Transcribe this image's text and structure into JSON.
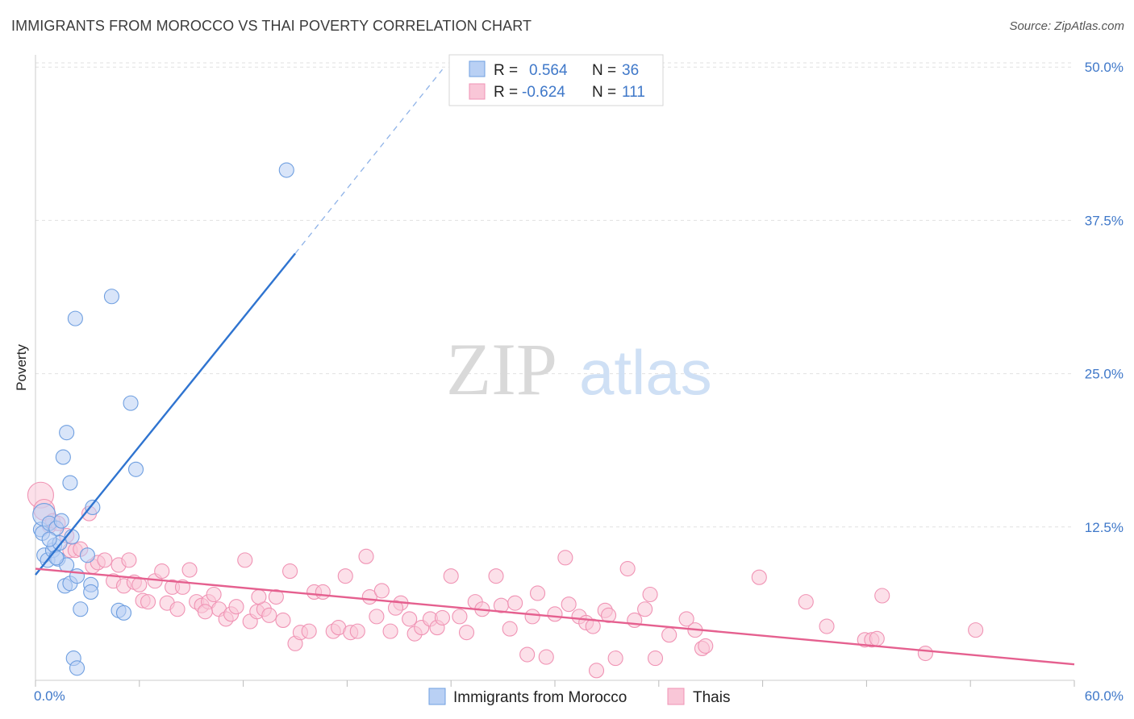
{
  "header": {
    "title": "IMMIGRANTS FROM MOROCCO VS THAI POVERTY CORRELATION CHART",
    "source": "Source: ZipAtlas.com"
  },
  "watermark": {
    "zip": "ZIP",
    "atlas": "atlas"
  },
  "legend_top": {
    "rows": [
      {
        "r_label": "R =",
        "r_value": "0.564",
        "n_label": "N =",
        "n_value": "36",
        "color": "#6f9fe0"
      },
      {
        "r_label": "R =",
        "r_value": "-0.624",
        "n_label": "N =",
        "n_value": "111",
        "color": "#f093b4"
      }
    ]
  },
  "chart_data": {
    "type": "scatter",
    "ylabel": "Poverty",
    "xlim": [
      0,
      60
    ],
    "ylim": [
      0,
      51
    ],
    "x_tick_labels": [
      "0.0%",
      "60.0%"
    ],
    "y_ticks": [
      12.5,
      25.0,
      37.5,
      50.0
    ],
    "y_tick_labels": [
      "12.5%",
      "25.0%",
      "37.5%",
      "50.0%"
    ],
    "grid": true,
    "legend_placement": "bottom-center",
    "series": [
      {
        "name": "Immigrants from Morocco",
        "color": "#6f9fe0",
        "fill": "#b9d0f4",
        "trend": {
          "x0": 0.0,
          "y0": 8.6,
          "x1": 15.0,
          "y1": 34.8,
          "dash_to_x": 23.5,
          "dash_to_y": 49.8
        },
        "points": [
          [
            0.3,
            12.3
          ],
          [
            0.4,
            12.0
          ],
          [
            0.5,
            13.5
          ],
          [
            0.5,
            10.2
          ],
          [
            0.7,
            9.8
          ],
          [
            0.8,
            12.8
          ],
          [
            1.0,
            10.6
          ],
          [
            1.1,
            11.0
          ],
          [
            1.2,
            12.4
          ],
          [
            1.3,
            9.9
          ],
          [
            1.4,
            11.2
          ],
          [
            1.5,
            13.0
          ],
          [
            1.6,
            18.2
          ],
          [
            1.7,
            7.7
          ],
          [
            1.8,
            20.2
          ],
          [
            1.8,
            9.4
          ],
          [
            2.0,
            7.9
          ],
          [
            2.0,
            16.1
          ],
          [
            2.1,
            11.7
          ],
          [
            2.2,
            1.8
          ],
          [
            2.3,
            29.5
          ],
          [
            2.4,
            1.0
          ],
          [
            2.4,
            8.5
          ],
          [
            2.6,
            5.8
          ],
          [
            3.0,
            10.2
          ],
          [
            3.2,
            7.8
          ],
          [
            3.3,
            14.1
          ],
          [
            3.2,
            7.2
          ],
          [
            4.4,
            31.3
          ],
          [
            4.8,
            5.7
          ],
          [
            5.1,
            5.5
          ],
          [
            5.5,
            22.6
          ],
          [
            5.8,
            17.2
          ],
          [
            14.5,
            41.6
          ],
          [
            1.2,
            10.0
          ],
          [
            0.8,
            11.5
          ]
        ],
        "sizes": [
          9,
          9,
          14,
          9,
          9,
          9,
          9,
          9,
          9,
          9,
          9,
          9,
          9,
          9,
          9,
          9,
          9,
          9,
          9,
          9,
          9,
          9,
          9,
          9,
          9,
          9,
          9,
          9,
          9,
          9,
          9,
          9,
          9,
          9,
          9,
          9
        ]
      },
      {
        "name": "Thais",
        "color": "#f093b4",
        "fill": "#f9c6d7",
        "trend": {
          "x0": 0.0,
          "y0": 9.1,
          "x1": 60.0,
          "y1": 1.3
        },
        "points": [
          [
            0.3,
            15.1
          ],
          [
            0.5,
            13.9
          ],
          [
            0.8,
            12.6
          ],
          [
            1.0,
            13.0
          ],
          [
            1.3,
            12.8
          ],
          [
            1.8,
            11.8
          ],
          [
            2.0,
            10.6
          ],
          [
            2.3,
            10.6
          ],
          [
            2.6,
            10.7
          ],
          [
            3.1,
            13.6
          ],
          [
            3.3,
            9.3
          ],
          [
            3.6,
            9.6
          ],
          [
            4.0,
            9.8
          ],
          [
            4.5,
            8.1
          ],
          [
            4.8,
            9.4
          ],
          [
            5.1,
            7.7
          ],
          [
            5.4,
            9.8
          ],
          [
            5.7,
            8.0
          ],
          [
            6.0,
            7.8
          ],
          [
            6.2,
            6.5
          ],
          [
            6.5,
            6.4
          ],
          [
            6.9,
            8.1
          ],
          [
            7.3,
            8.9
          ],
          [
            7.6,
            6.3
          ],
          [
            7.9,
            7.6
          ],
          [
            8.2,
            5.8
          ],
          [
            8.5,
            7.6
          ],
          [
            8.9,
            9.0
          ],
          [
            9.3,
            6.4
          ],
          [
            9.6,
            6.1
          ],
          [
            10.0,
            6.4
          ],
          [
            10.3,
            7.0
          ],
          [
            10.6,
            5.8
          ],
          [
            11.0,
            5.0
          ],
          [
            11.3,
            5.4
          ],
          [
            11.6,
            6.0
          ],
          [
            12.1,
            9.8
          ],
          [
            12.4,
            4.8
          ],
          [
            12.8,
            5.6
          ],
          [
            13.2,
            5.8
          ],
          [
            13.5,
            5.3
          ],
          [
            13.9,
            6.8
          ],
          [
            14.3,
            4.9
          ],
          [
            14.7,
            8.9
          ],
          [
            15.0,
            3.0
          ],
          [
            15.3,
            3.9
          ],
          [
            15.8,
            4.0
          ],
          [
            16.1,
            7.2
          ],
          [
            16.6,
            7.2
          ],
          [
            17.2,
            4.0
          ],
          [
            17.5,
            4.3
          ],
          [
            17.9,
            8.5
          ],
          [
            18.2,
            3.9
          ],
          [
            18.6,
            4.0
          ],
          [
            19.1,
            10.1
          ],
          [
            19.3,
            6.8
          ],
          [
            19.7,
            5.2
          ],
          [
            20.0,
            7.3
          ],
          [
            20.5,
            4.0
          ],
          [
            21.1,
            6.3
          ],
          [
            21.6,
            5.0
          ],
          [
            21.9,
            3.8
          ],
          [
            22.3,
            4.3
          ],
          [
            22.8,
            5.0
          ],
          [
            23.2,
            4.3
          ],
          [
            23.5,
            5.1
          ],
          [
            24.0,
            8.5
          ],
          [
            24.5,
            5.2
          ],
          [
            24.9,
            3.9
          ],
          [
            25.4,
            6.4
          ],
          [
            25.8,
            5.8
          ],
          [
            26.6,
            8.5
          ],
          [
            26.9,
            6.1
          ],
          [
            27.4,
            4.2
          ],
          [
            27.7,
            6.3
          ],
          [
            28.4,
            2.1
          ],
          [
            28.7,
            5.2
          ],
          [
            29.0,
            7.1
          ],
          [
            29.5,
            1.9
          ],
          [
            30.0,
            5.4
          ],
          [
            30.6,
            10.0
          ],
          [
            30.8,
            6.2
          ],
          [
            31.4,
            5.2
          ],
          [
            31.8,
            4.7
          ],
          [
            32.2,
            4.4
          ],
          [
            32.4,
            0.8
          ],
          [
            32.9,
            5.7
          ],
          [
            33.1,
            5.3
          ],
          [
            33.5,
            1.8
          ],
          [
            34.2,
            9.1
          ],
          [
            34.6,
            4.9
          ],
          [
            35.2,
            5.8
          ],
          [
            35.5,
            7.0
          ],
          [
            35.8,
            1.8
          ],
          [
            36.6,
            3.7
          ],
          [
            37.6,
            5.0
          ],
          [
            38.1,
            4.1
          ],
          [
            38.5,
            2.6
          ],
          [
            38.7,
            2.8
          ],
          [
            41.8,
            8.4
          ],
          [
            44.5,
            6.4
          ],
          [
            45.7,
            4.4
          ],
          [
            47.9,
            3.3
          ],
          [
            48.3,
            3.3
          ],
          [
            48.9,
            6.9
          ],
          [
            48.6,
            3.4
          ],
          [
            51.4,
            2.2
          ],
          [
            54.3,
            4.1
          ],
          [
            12.9,
            6.8
          ],
          [
            9.8,
            5.6
          ],
          [
            20.8,
            5.9
          ]
        ],
        "sizes": [
          16,
          13,
          9,
          9,
          9,
          9,
          9,
          9,
          9,
          9,
          9,
          9,
          9,
          9,
          9,
          9,
          9,
          9,
          9,
          9,
          9,
          9,
          9,
          9,
          9,
          9,
          9,
          9,
          9,
          9,
          9,
          9,
          9,
          9,
          9,
          9,
          9,
          9,
          9,
          9,
          9,
          9,
          9,
          9,
          9,
          9,
          9,
          9,
          9,
          9,
          9,
          9,
          9,
          9,
          9,
          9,
          9,
          9,
          9,
          9,
          9,
          9,
          9,
          9,
          9,
          9,
          9,
          9,
          9,
          9,
          9,
          9,
          9,
          9,
          9,
          9,
          9,
          9,
          9,
          9,
          9,
          9,
          9,
          9,
          9,
          9,
          9,
          9,
          9,
          9,
          9,
          9,
          9,
          9,
          9,
          9,
          9,
          9,
          9,
          9,
          9,
          9,
          9,
          9,
          9,
          9,
          9,
          9,
          9,
          9,
          9
        ]
      }
    ]
  }
}
